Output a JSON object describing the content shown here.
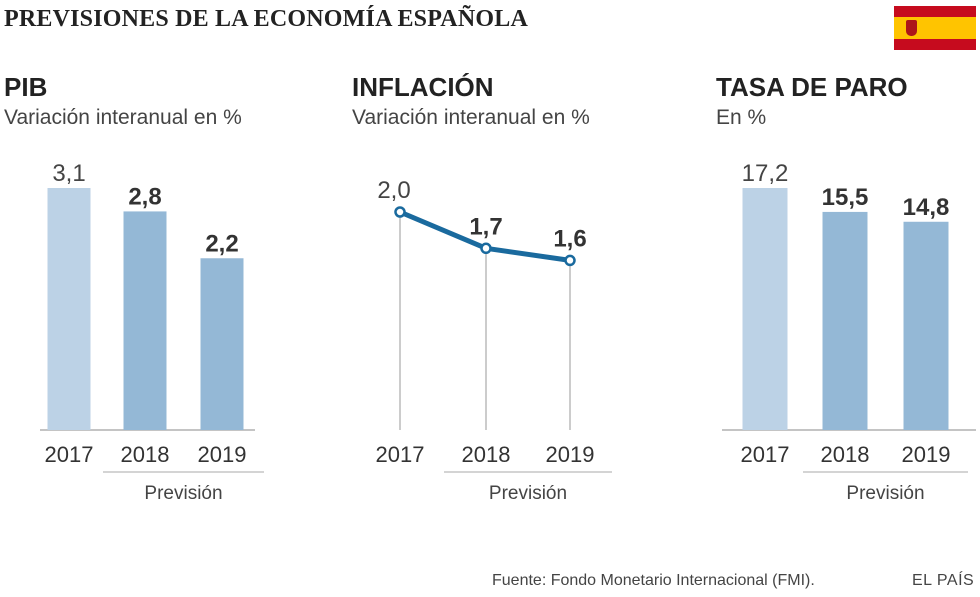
{
  "title": "PREVISIONES DE LA ECONOMÍA ESPAÑOLA",
  "flag": "spain-flag",
  "colors": {
    "bar_actual": "#bcd2e6",
    "bar_forecast": "#94b8d6",
    "line": "#1a6a9e",
    "axis": "#888888"
  },
  "chart_data": [
    {
      "type": "bar",
      "title": "PIB",
      "subtitle": "Variación interanual en %",
      "categories": [
        "2017",
        "2018",
        "2019"
      ],
      "values": [
        3.1,
        2.8,
        2.2
      ],
      "value_labels": [
        "3,1",
        "2,8",
        "2,2"
      ],
      "forecast_label": "Previsión",
      "forecast_categories": [
        "2018",
        "2019"
      ],
      "ylim": [
        0,
        3.1
      ]
    },
    {
      "type": "line",
      "title": "INFLACIÓN",
      "subtitle": "Variación interanual en %",
      "categories": [
        "2017",
        "2018",
        "2019"
      ],
      "values": [
        2.0,
        1.7,
        1.6
      ],
      "value_labels": [
        "2,0",
        "1,7",
        "1,6"
      ],
      "forecast_label": "Previsión",
      "forecast_categories": [
        "2018",
        "2019"
      ],
      "ylim": [
        0,
        2.0
      ]
    },
    {
      "type": "bar",
      "title": "TASA DE PARO",
      "subtitle": "En %",
      "categories": [
        "2017",
        "2018",
        "2019"
      ],
      "values": [
        17.2,
        15.5,
        14.8
      ],
      "value_labels": [
        "17,2",
        "15,5",
        "14,8"
      ],
      "forecast_label": "Previsión",
      "forecast_categories": [
        "2018",
        "2019"
      ],
      "ylim": [
        0,
        17.2
      ]
    }
  ],
  "footer": {
    "source": "Fuente: Fondo Monetario Internacional (FMI).",
    "brand": "EL PAÍS"
  }
}
